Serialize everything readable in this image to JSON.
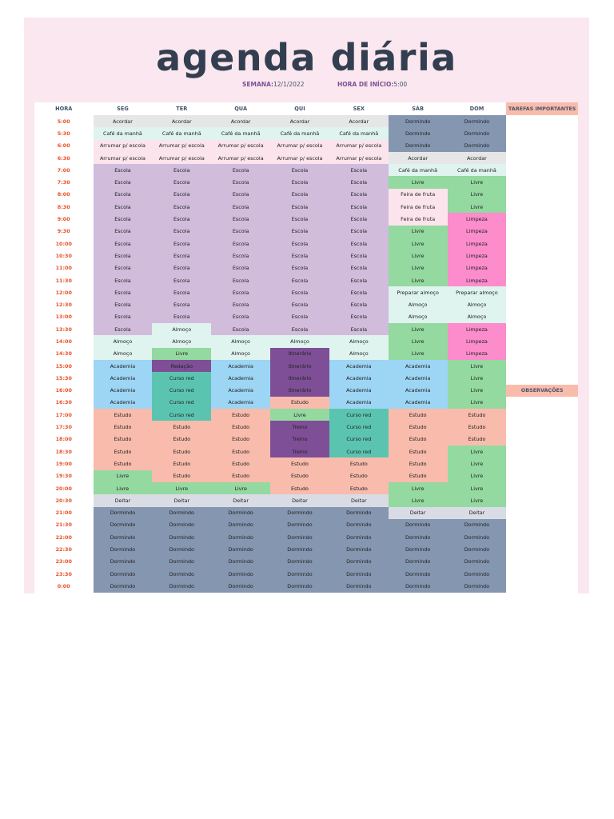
{
  "title": "agenda diária",
  "week_label": "SEMANA:",
  "week_value": "12/1/2022",
  "start_label": "HORA DE INÍCIO:",
  "start_value": "5:00",
  "headers": [
    "HORA",
    "SEG",
    "TER",
    "QUA",
    "QUI",
    "SEX",
    "SÁB",
    "DOM"
  ],
  "side_header": "TAREFAS IMPORTANTES",
  "side_notes": "OBSERVAÇÕES",
  "activity_colors": {
    "Acordar": "#e6e6e6",
    "Café da manhã": "#dff3ef",
    "Arrumar p/ escola": "#fce4ec",
    "Dormindo": "#8496b0",
    "Escola": "#d1bcdc",
    "Livre": "#93d9a0",
    "Feira de fruta": "#fce4ec",
    "Limpeza": "#fc8ccc",
    "Preparar almoço": "#dff3ef",
    "Almoço": "#dff3ef",
    "Academia": "#9dd5f5",
    "Redação": "#7e4f96",
    "Itinerário": "#7e4f96",
    "Treino": "#7e4f96",
    "Curso red": "#5bc4b0",
    "Estudo": "#f9bcac",
    "Deitar": "#d9dce5"
  },
  "rows": [
    {
      "time": "5:00",
      "cells": [
        "Acordar",
        "Acordar",
        "Acordar",
        "Acordar",
        "Acordar",
        "Dormindo",
        "Dormindo"
      ]
    },
    {
      "time": "5:30",
      "cells": [
        "Café da manhã",
        "Café da manhã",
        "Café da manhã",
        "Café da manhã",
        "Café da manhã",
        "Dormindo",
        "Dormindo"
      ]
    },
    {
      "time": "6:00",
      "cells": [
        "Arrumar p/ escola",
        "Arrumar p/ escola",
        "Arrumar p/ escola",
        "Arrumar p/ escola",
        "Arrumar p/ escola",
        "Dormindo",
        "Dormindo"
      ]
    },
    {
      "time": "6:30",
      "cells": [
        "Arrumar p/ escola",
        "Arrumar p/ escola",
        "Arrumar p/ escola",
        "Arrumar p/ escola",
        "Arrumar p/ escola",
        "Acordar",
        "Acordar"
      ]
    },
    {
      "time": "7:00",
      "cells": [
        "Escola",
        "Escola",
        "Escola",
        "Escola",
        "Escola",
        "Café da manhã",
        "Café da manhã"
      ]
    },
    {
      "time": "7:30",
      "cells": [
        "Escola",
        "Escola",
        "Escola",
        "Escola",
        "Escola",
        "Livre",
        "Livre"
      ]
    },
    {
      "time": "8:00",
      "cells": [
        "Escola",
        "Escola",
        "Escola",
        "Escola",
        "Escola",
        "Feira de fruta",
        "Livre"
      ]
    },
    {
      "time": "8:30",
      "cells": [
        "Escola",
        "Escola",
        "Escola",
        "Escola",
        "Escola",
        "Feira de fruta",
        "Livre"
      ]
    },
    {
      "time": "9:00",
      "cells": [
        "Escola",
        "Escola",
        "Escola",
        "Escola",
        "Escola",
        "Feira de fruta",
        "Limpeza"
      ]
    },
    {
      "time": "9:30",
      "cells": [
        "Escola",
        "Escola",
        "Escola",
        "Escola",
        "Escola",
        "Livre",
        "Limpeza"
      ]
    },
    {
      "time": "10:00",
      "cells": [
        "Escola",
        "Escola",
        "Escola",
        "Escola",
        "Escola",
        "Livre",
        "Limpeza"
      ]
    },
    {
      "time": "10:30",
      "cells": [
        "Escola",
        "Escola",
        "Escola",
        "Escola",
        "Escola",
        "Livre",
        "Limpeza"
      ]
    },
    {
      "time": "11:00",
      "cells": [
        "Escola",
        "Escola",
        "Escola",
        "Escola",
        "Escola",
        "Livre",
        "Limpeza"
      ]
    },
    {
      "time": "11:30",
      "cells": [
        "Escola",
        "Escola",
        "Escola",
        "Escola",
        "Escola",
        "Livre",
        "Limpeza"
      ]
    },
    {
      "time": "12:00",
      "cells": [
        "Escola",
        "Escola",
        "Escola",
        "Escola",
        "Escola",
        "Preparar almoço",
        "Preparar almoço"
      ]
    },
    {
      "time": "12:30",
      "cells": [
        "Escola",
        "Escola",
        "Escola",
        "Escola",
        "Escola",
        "Almoço",
        "Almoço"
      ]
    },
    {
      "time": "13:00",
      "cells": [
        "Escola",
        "Escola",
        "Escola",
        "Escola",
        "Escola",
        "Almoço",
        "Almoço"
      ]
    },
    {
      "time": "13:30",
      "cells": [
        "Escola",
        "Almoço",
        "Escola",
        "Escola",
        "Escola",
        "Livre",
        "Limpeza"
      ]
    },
    {
      "time": "14:00",
      "cells": [
        "Almoço",
        "Almoço",
        "Almoço",
        "Almoço",
        "Almoço",
        "Livre",
        "Limpeza"
      ]
    },
    {
      "time": "14:30",
      "cells": [
        "Almoço",
        "Livre",
        "Almoço",
        "Itinerário",
        "Almoço",
        "Livre",
        "Limpeza"
      ]
    },
    {
      "time": "15:00",
      "cells": [
        "Academia",
        "Redação",
        "Academia",
        "Itinerário",
        "Academia",
        "Academia",
        "Livre"
      ]
    },
    {
      "time": "15:30",
      "cells": [
        "Academia",
        "Curso red",
        "Academia",
        "Itinerário",
        "Academia",
        "Academia",
        "Livre"
      ]
    },
    {
      "time": "16:00",
      "cells": [
        "Academia",
        "Curso red",
        "Academia",
        "Itinerário",
        "Academia",
        "Academia",
        "Livre"
      ]
    },
    {
      "time": "16:30",
      "cells": [
        "Academia",
        "Curso red",
        "Academia",
        "Estudo",
        "Academia",
        "Academia",
        "Livre"
      ]
    },
    {
      "time": "17:00",
      "cells": [
        "Estudo",
        "Curso red",
        "Estudo",
        "Livre",
        "Curso red",
        "Estudo",
        "Estudo"
      ]
    },
    {
      "time": "17:30",
      "cells": [
        "Estudo",
        "Estudo",
        "Estudo",
        "Treino",
        "Curso red",
        "Estudo",
        "Estudo"
      ]
    },
    {
      "time": "18:00",
      "cells": [
        "Estudo",
        "Estudo",
        "Estudo",
        "Treino",
        "Curso red",
        "Estudo",
        "Estudo"
      ]
    },
    {
      "time": "18:30",
      "cells": [
        "Estudo",
        "Estudo",
        "Estudo",
        "Treino",
        "Curso red",
        "Estudo",
        "Livre"
      ]
    },
    {
      "time": "19:00",
      "cells": [
        "Estudo",
        "Estudo",
        "Estudo",
        "Estudo",
        "Estudo",
        "Estudo",
        "Livre"
      ]
    },
    {
      "time": "19:30",
      "cells": [
        "Livre",
        "Estudo",
        "Estudo",
        "Estudo",
        "Estudo",
        "Estudo",
        "Livre"
      ]
    },
    {
      "time": "20:00",
      "cells": [
        "Livre",
        "Livre",
        "Livre",
        "Estudo",
        "Estudo",
        "Livre",
        "Livre"
      ]
    },
    {
      "time": "20:30",
      "cells": [
        "Deitar",
        "Deitar",
        "Deitar",
        "Deitar",
        "Deitar",
        "Livre",
        "Livre"
      ]
    },
    {
      "time": "21:00",
      "cells": [
        "Dormindo",
        "Dormindo",
        "Dormindo",
        "Dormindo",
        "Dormindo",
        "Deitar",
        "Deitar"
      ]
    },
    {
      "time": "21:30",
      "cells": [
        "Dormindo",
        "Dormindo",
        "Dormindo",
        "Dormindo",
        "Dormindo",
        "Dormindo",
        "Dormindo"
      ]
    },
    {
      "time": "22:00",
      "cells": [
        "Dormindo",
        "Dormindo",
        "Dormindo",
        "Dormindo",
        "Dormindo",
        "Dormindo",
        "Dormindo"
      ]
    },
    {
      "time": "22:30",
      "cells": [
        "Dormindo",
        "Dormindo",
        "Dormindo",
        "Dormindo",
        "Dormindo",
        "Dormindo",
        "Dormindo"
      ]
    },
    {
      "time": "23:00",
      "cells": [
        "Dormindo",
        "Dormindo",
        "Dormindo",
        "Dormindo",
        "Dormindo",
        "Dormindo",
        "Dormindo"
      ]
    },
    {
      "time": "23:30",
      "cells": [
        "Dormindo",
        "Dormindo",
        "Dormindo",
        "Dormindo",
        "Dormindo",
        "Dormindo",
        "Dormindo"
      ]
    },
    {
      "time": "0:00",
      "cells": [
        "Dormindo",
        "Dormindo",
        "Dormindo",
        "Dormindo",
        "Dormindo",
        "Dormindo",
        "Dormindo"
      ]
    }
  ]
}
